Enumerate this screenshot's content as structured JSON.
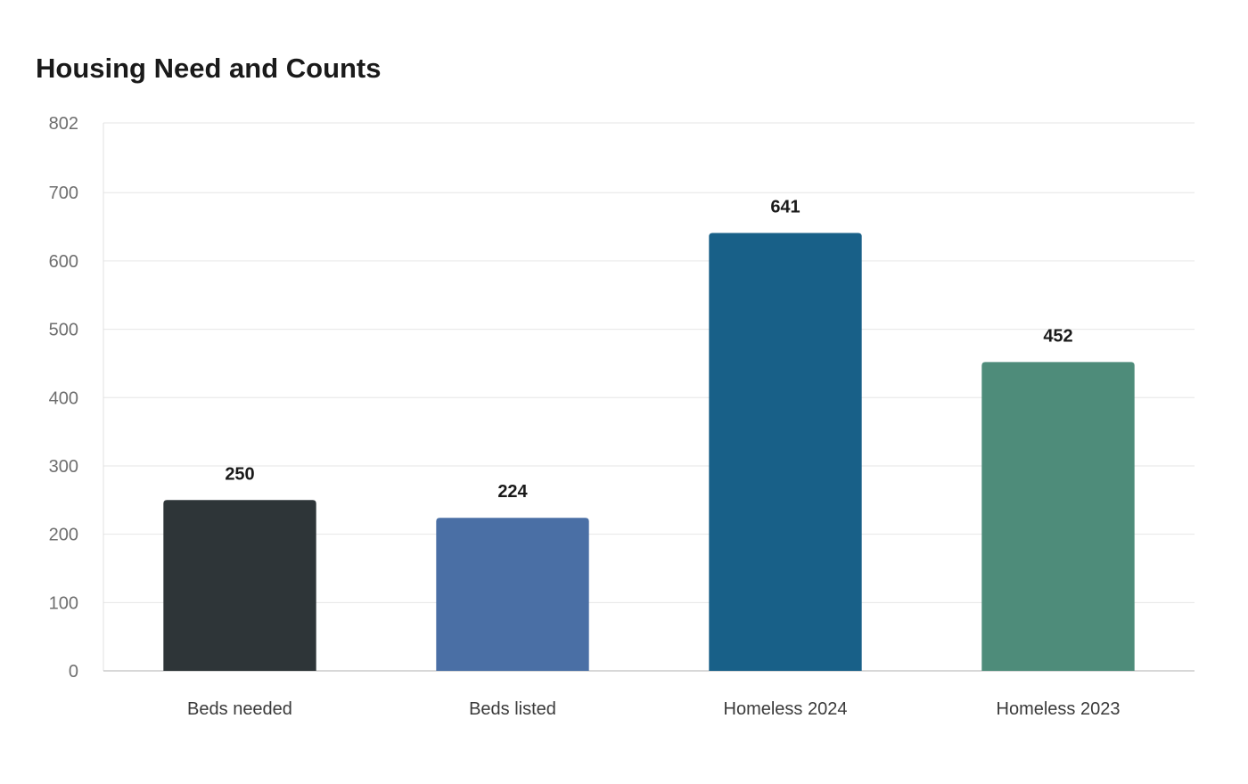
{
  "chart_data": {
    "type": "bar",
    "title": "Housing Need and Counts",
    "xlabel": "",
    "ylabel": "",
    "categories": [
      "Beds needed",
      "Beds listed",
      "Homeless 2024",
      "Homeless 2023"
    ],
    "values": [
      250,
      224,
      641,
      452
    ],
    "data_labels": [
      "250",
      "224",
      "641",
      "452"
    ],
    "colors": [
      "#2e3538",
      "#4a6fa5",
      "#186088",
      "#4e8c7a"
    ],
    "ylim": [
      0,
      802
    ],
    "yticks": [
      0,
      100,
      200,
      300,
      400,
      500,
      600,
      700,
      802
    ],
    "grid": true,
    "legend": "none"
  }
}
